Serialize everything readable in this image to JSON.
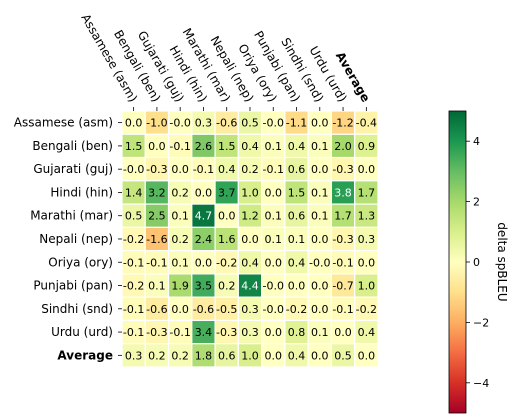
{
  "chart_data": {
    "type": "heatmap",
    "columns": [
      "Assamese (asm)",
      "Bengali (ben)",
      "Gujarati (guj)",
      "Hindi (hin)",
      "Marathi (mar)",
      "Nepali (nep)",
      "Oriya (ory)",
      "Punjabi (pan)",
      "Sindhi (snd)",
      "Urdu (urd)",
      "Average"
    ],
    "rows": [
      "Assamese (asm)",
      "Bengali (ben)",
      "Gujarati (guj)",
      "Hindi (hin)",
      "Marathi (mar)",
      "Nepali (nep)",
      "Oriya (ory)",
      "Punjabi (pan)",
      "Sindhi (snd)",
      "Urdu (urd)",
      "Average"
    ],
    "values": [
      [
        0.0,
        -1.0,
        -0.0,
        0.3,
        -0.6,
        0.5,
        -0.0,
        -1.1,
        0.0,
        -1.2,
        -0.4
      ],
      [
        1.5,
        0.0,
        -0.1,
        2.6,
        1.5,
        0.4,
        0.1,
        0.4,
        0.1,
        2.0,
        0.9
      ],
      [
        -0.0,
        -0.3,
        0.0,
        -0.1,
        0.4,
        0.2,
        -0.1,
        0.6,
        0.0,
        -0.3,
        0.0
      ],
      [
        1.4,
        3.2,
        0.2,
        0.0,
        3.7,
        1.0,
        0.0,
        1.5,
        0.1,
        3.8,
        1.7
      ],
      [
        0.5,
        2.5,
        0.1,
        4.7,
        0.0,
        1.2,
        0.1,
        0.6,
        0.1,
        1.7,
        1.3
      ],
      [
        -0.2,
        -1.6,
        0.2,
        2.4,
        1.6,
        0.0,
        0.1,
        0.1,
        0.0,
        -0.3,
        0.3
      ],
      [
        -0.1,
        -0.1,
        0.1,
        0.0,
        -0.2,
        0.4,
        0.0,
        0.4,
        -0.0,
        -0.1,
        0.0
      ],
      [
        -0.2,
        0.1,
        1.9,
        3.5,
        0.2,
        4.4,
        -0.0,
        0.0,
        0.0,
        -0.7,
        1.0
      ],
      [
        -0.1,
        -0.6,
        0.0,
        -0.6,
        -0.5,
        0.3,
        -0.0,
        -0.2,
        0.0,
        -0.1,
        -0.2
      ],
      [
        -0.1,
        -0.3,
        -0.1,
        3.4,
        -0.3,
        0.3,
        0.0,
        0.8,
        0.1,
        0.0,
        0.4
      ],
      [
        0.3,
        0.2,
        0.2,
        1.8,
        0.6,
        1.0,
        0.0,
        0.4,
        0.0,
        0.5,
        0.0
      ]
    ],
    "bold_labels": [
      "Average"
    ],
    "colorbar": {
      "label": "delta spBLEU",
      "range": [
        -5,
        5
      ],
      "ticks": [
        -4,
        -2,
        0,
        2,
        4
      ],
      "tick_labels": [
        "−4",
        "−2",
        "0",
        "2",
        "4"
      ],
      "colormap": "RdYlGn"
    },
    "grid": false
  }
}
